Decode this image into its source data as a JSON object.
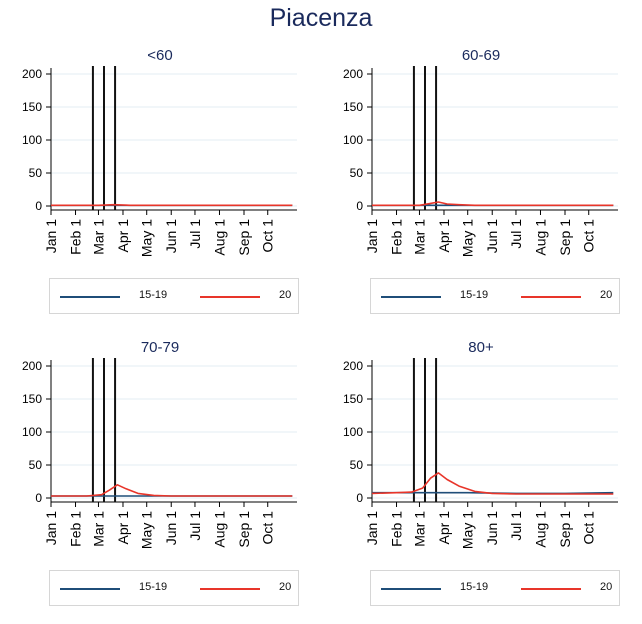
{
  "title": "Piacenza",
  "legend": [
    {
      "label": "15-19",
      "color": "#1f4e79"
    },
    {
      "label": "20",
      "color": "#e8352a"
    }
  ],
  "chart_data": [
    {
      "type": "line",
      "title": "<60",
      "ylim": [
        0,
        200
      ],
      "yticks": [
        0,
        50,
        100,
        150,
        200
      ],
      "xticks": [
        "Jan 1",
        "Feb 1",
        "Mar 1",
        "Apr 1",
        "May 1",
        "Jun 1",
        "Jul 1",
        "Aug 1",
        "Sep 1",
        "Oct 1"
      ],
      "vlines": [
        "Feb 23",
        "Mar 8",
        "Mar 22"
      ],
      "series": [
        {
          "name": "15-19",
          "x": [
            "Jan 1",
            "Mar 1",
            "May 1",
            "Jul 1",
            "Sep 1",
            "Nov 1"
          ],
          "values": [
            1,
            1,
            1,
            1,
            1,
            1
          ]
        },
        {
          "name": "20",
          "x": [
            "Jan 1",
            "Mar 1",
            "Mar 20",
            "Apr 10",
            "May 1",
            "Jul 1",
            "Sep 1",
            "Nov 1"
          ],
          "values": [
            1,
            1,
            2,
            1,
            1,
            1,
            1,
            1
          ]
        }
      ]
    },
    {
      "type": "line",
      "title": "60-69",
      "ylim": [
        0,
        200
      ],
      "yticks": [
        0,
        50,
        100,
        150,
        200
      ],
      "xticks": [
        "Jan 1",
        "Feb 1",
        "Mar 1",
        "Apr 1",
        "May 1",
        "Jun 1",
        "Jul 1",
        "Aug 1",
        "Sep 1",
        "Oct 1"
      ],
      "vlines": [
        "Feb 23",
        "Mar 8",
        "Mar 22"
      ],
      "series": [
        {
          "name": "15-19",
          "x": [
            "Jan 1",
            "Mar 1",
            "May 1",
            "Jul 1",
            "Sep 1",
            "Nov 1"
          ],
          "values": [
            1,
            1,
            1,
            1,
            1,
            1
          ]
        },
        {
          "name": "20",
          "x": [
            "Jan 1",
            "Mar 1",
            "Mar 15",
            "Mar 25",
            "Apr 5",
            "Apr 20",
            "May 10",
            "Jul 1",
            "Sep 1",
            "Nov 1"
          ],
          "values": [
            1,
            1,
            4,
            6,
            3,
            2,
            1,
            1,
            1,
            1
          ]
        }
      ]
    },
    {
      "type": "line",
      "title": "70-79",
      "ylim": [
        0,
        200
      ],
      "yticks": [
        0,
        50,
        100,
        150,
        200
      ],
      "xticks": [
        "Jan 1",
        "Feb 1",
        "Mar 1",
        "Apr 1",
        "May 1",
        "Jun 1",
        "Jul 1",
        "Aug 1",
        "Sep 1",
        "Oct 1"
      ],
      "vlines": [
        "Feb 23",
        "Mar 8",
        "Mar 22"
      ],
      "series": [
        {
          "name": "15-19",
          "x": [
            "Jan 1",
            "Mar 1",
            "May 1",
            "Jul 1",
            "Sep 1",
            "Nov 1"
          ],
          "values": [
            3,
            3,
            3,
            3,
            3,
            3
          ]
        },
        {
          "name": "20",
          "x": [
            "Jan 1",
            "Feb 15",
            "Mar 5",
            "Mar 15",
            "Mar 25",
            "Apr 5",
            "Apr 20",
            "May 10",
            "Jun 1",
            "Aug 1",
            "Nov 1"
          ],
          "values": [
            3,
            3,
            5,
            12,
            20,
            14,
            7,
            4,
            3,
            3,
            3
          ]
        }
      ]
    },
    {
      "type": "line",
      "title": "80+",
      "ylim": [
        0,
        200
      ],
      "yticks": [
        0,
        50,
        100,
        150,
        200
      ],
      "xticks": [
        "Jan 1",
        "Feb 1",
        "Mar 1",
        "Apr 1",
        "May 1",
        "Jun 1",
        "Jul 1",
        "Aug 1",
        "Sep 1",
        "Oct 1"
      ],
      "vlines": [
        "Feb 23",
        "Mar 8",
        "Mar 22"
      ],
      "series": [
        {
          "name": "15-19",
          "x": [
            "Jan 1",
            "Mar 1",
            "May 1",
            "Jul 1",
            "Sep 1",
            "Nov 1"
          ],
          "values": [
            8,
            8,
            8,
            7,
            7,
            8
          ]
        },
        {
          "name": "20",
          "x": [
            "Jan 1",
            "Feb 1",
            "Feb 20",
            "Mar 5",
            "Mar 15",
            "Mar 25",
            "Apr 5",
            "Apr 20",
            "May 10",
            "Jun 1",
            "Jul 1",
            "Sep 1",
            "Nov 1"
          ],
          "values": [
            7,
            8,
            9,
            15,
            30,
            38,
            28,
            18,
            10,
            7,
            6,
            6,
            6
          ]
        }
      ]
    }
  ]
}
